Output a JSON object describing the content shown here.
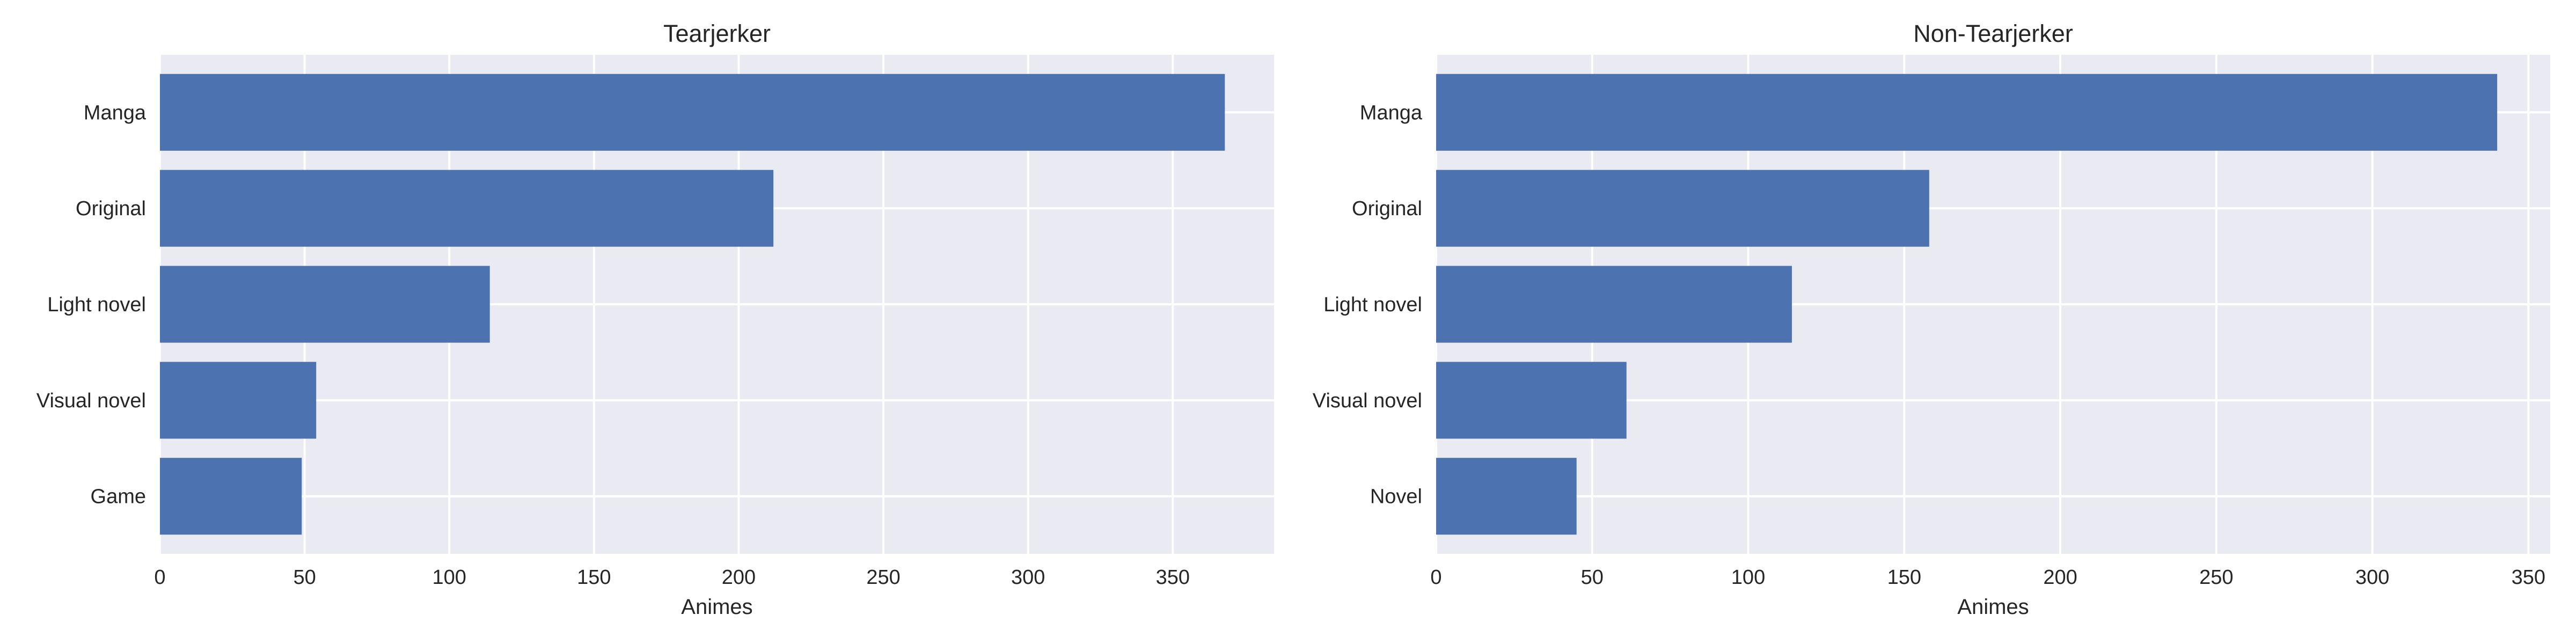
{
  "chart_data": [
    {
      "type": "bar",
      "orientation": "horizontal",
      "title": "Tearjerker",
      "xlabel": "Animes",
      "ylabel": "",
      "categories": [
        "Manga",
        "Original",
        "Light novel",
        "Visual novel",
        "Game"
      ],
      "values": [
        368,
        212,
        114,
        54,
        49
      ],
      "xlim": [
        0,
        385
      ],
      "xticks": [
        0,
        50,
        100,
        150,
        200,
        250,
        300,
        350
      ],
      "grid": true,
      "color": "#4c72b0",
      "background": "#eaeaf2"
    },
    {
      "type": "bar",
      "orientation": "horizontal",
      "title": "Non-Tearjerker",
      "xlabel": "Animes",
      "ylabel": "",
      "categories": [
        "Manga",
        "Original",
        "Light novel",
        "Visual novel",
        "Novel"
      ],
      "values": [
        340,
        158,
        114,
        61,
        45
      ],
      "xlim": [
        0,
        357
      ],
      "xticks": [
        0,
        50,
        100,
        150,
        200,
        250,
        300,
        350
      ],
      "grid": true,
      "color": "#4c72b0",
      "background": "#eaeaf2"
    }
  ]
}
